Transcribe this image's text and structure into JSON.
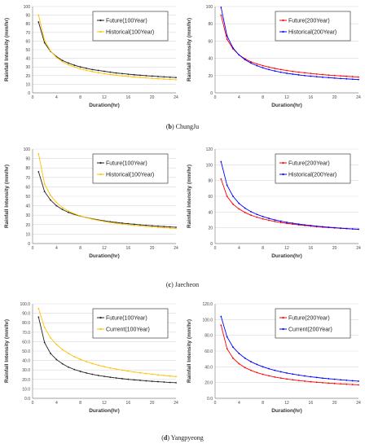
{
  "captions": [
    {
      "letter": "b",
      "paren_open": "(",
      "paren_close": ")",
      "name": "ChungJu"
    },
    {
      "letter": "c",
      "paren_open": "(",
      "paren_close": ")",
      "name": "Jaecheon"
    },
    {
      "letter": "d",
      "paren_open": "(",
      "paren_close": ")",
      "name": "Yangpyeong"
    }
  ],
  "chart_data": [
    {
      "type": "line",
      "xlabel": "Duration(hr)",
      "ylabel": "Rainfall Intensity (mm/hr)",
      "xlim": [
        0,
        24
      ],
      "ylim": [
        0,
        100
      ],
      "x_ticks": [
        0,
        4,
        8,
        12,
        16,
        20,
        24
      ],
      "y_ticks": [
        "0",
        "10",
        "20",
        "30",
        "40",
        "50",
        "60",
        "70",
        "80",
        "90",
        "100"
      ],
      "legend": "top-right",
      "x": [
        1,
        2,
        3,
        4,
        5,
        6,
        7,
        8,
        9,
        10,
        11,
        12,
        13,
        14,
        15,
        16,
        17,
        18,
        19,
        20,
        21,
        22,
        23,
        24
      ],
      "series": [
        {
          "name": "Future(100Year)",
          "color": "#222222",
          "values": [
            82,
            58,
            48,
            42,
            37.5,
            34.5,
            32,
            30,
            28.5,
            27,
            26,
            25,
            24,
            23,
            22.3,
            21.6,
            21,
            20.4,
            19.9,
            19.4,
            18.9,
            18.5,
            18.1,
            17.7
          ]
        },
        {
          "name": "Historical(100Year)",
          "color": "#ffc000",
          "values": [
            90,
            61,
            48.5,
            41,
            36,
            32.5,
            30,
            27.8,
            26,
            24.6,
            23.3,
            22.2,
            21.3,
            20.4,
            19.7,
            19,
            18.4,
            17.8,
            17.3,
            16.8,
            16.4,
            16,
            15.6,
            15.2
          ]
        }
      ]
    },
    {
      "type": "line",
      "xlabel": "Duration(hr)",
      "ylabel": "Rainfall Intensity (mm/hr)",
      "xlim": [
        0,
        24
      ],
      "ylim": [
        0,
        100
      ],
      "x_ticks": [
        0,
        4,
        8,
        12,
        16,
        20,
        24
      ],
      "y_ticks": [
        "0",
        "20",
        "40",
        "60",
        "80",
        "100"
      ],
      "legend": "top-right",
      "x": [
        1,
        2,
        3,
        4,
        5,
        6,
        7,
        8,
        9,
        10,
        11,
        12,
        13,
        14,
        15,
        16,
        17,
        18,
        19,
        20,
        21,
        22,
        23,
        24
      ],
      "series": [
        {
          "name": "Future(200Year)",
          "color": "#ff0000",
          "values": [
            90,
            62,
            51,
            44,
            39.5,
            36,
            33.5,
            31.5,
            29.8,
            28.3,
            27,
            25.9,
            24.9,
            24,
            23.2,
            22.5,
            21.8,
            21.2,
            20.6,
            20.1,
            19.6,
            19.1,
            18.7,
            18.3
          ]
        },
        {
          "name": "Historical(200Year)",
          "color": "#0000ff",
          "values": [
            99,
            66,
            52,
            44,
            38.5,
            34.5,
            31.5,
            29,
            27,
            25.3,
            23.9,
            22.7,
            21.7,
            20.8,
            20,
            19.3,
            18.7,
            18.1,
            17.6,
            17.1,
            16.6,
            16.2,
            15.8,
            15.4
          ]
        }
      ]
    },
    {
      "type": "line",
      "xlabel": "Duration(hr)",
      "ylabel": "Rainfall Intensity (mm/hr)",
      "xlim": [
        0,
        24
      ],
      "ylim": [
        0,
        100
      ],
      "x_ticks": [
        0,
        4,
        8,
        12,
        16,
        20,
        24
      ],
      "y_ticks": [
        "0",
        "10",
        "20",
        "30",
        "40",
        "50",
        "60",
        "70",
        "80",
        "90",
        "100"
      ],
      "legend": "top-right",
      "x": [
        1,
        2,
        3,
        4,
        5,
        6,
        7,
        8,
        9,
        10,
        11,
        12,
        13,
        14,
        15,
        16,
        17,
        18,
        19,
        20,
        21,
        22,
        23,
        24
      ],
      "series": [
        {
          "name": "Future(100Year)",
          "color": "#222222",
          "values": [
            76,
            55,
            46,
            40,
            36,
            33,
            30.8,
            29,
            27.5,
            26.2,
            25,
            24,
            23.1,
            22.3,
            21.6,
            21,
            20.4,
            19.8,
            19.3,
            18.8,
            18.4,
            18,
            17.6,
            17.2
          ]
        },
        {
          "name": "Historical(100Year)",
          "color": "#ffc000",
          "values": [
            95,
            63,
            51,
            43.5,
            38,
            34.3,
            31.5,
            29.3,
            27.4,
            25.8,
            24.5,
            23.3,
            22.3,
            21.4,
            20.6,
            19.9,
            19.2,
            18.6,
            18.1,
            17.6,
            17.1,
            16.7,
            16.3,
            15.9
          ]
        }
      ]
    },
    {
      "type": "line",
      "xlabel": "Duration(hr)",
      "ylabel": "Rainfall Intensity (mm/hr)",
      "xlim": [
        0,
        24
      ],
      "ylim": [
        0,
        120
      ],
      "x_ticks": [
        0,
        4,
        8,
        12,
        16,
        20,
        24
      ],
      "y_ticks": [
        "0",
        "20",
        "40",
        "60",
        "80",
        "100",
        "120"
      ],
      "legend": "top-right",
      "x": [
        1,
        2,
        3,
        4,
        5,
        6,
        7,
        8,
        9,
        10,
        11,
        12,
        13,
        14,
        15,
        16,
        17,
        18,
        19,
        20,
        21,
        22,
        23,
        24
      ],
      "series": [
        {
          "name": "Future(200Year)",
          "color": "#ff0000",
          "values": [
            82,
            60,
            50,
            44,
            39.5,
            36,
            33.5,
            31.3,
            29.5,
            28,
            26.7,
            25.6,
            24.6,
            23.7,
            22.9,
            22.2,
            21.5,
            20.9,
            20.3,
            19.8,
            19.3,
            18.9,
            18.5,
            18.1
          ]
        },
        {
          "name": "Historical(200Year)",
          "color": "#0000ff",
          "values": [
            104,
            74,
            60,
            51,
            45,
            40.5,
            37,
            34.3,
            32,
            30,
            28.4,
            27,
            25.8,
            24.7,
            23.7,
            22.9,
            22.1,
            21.4,
            20.8,
            20.2,
            19.6,
            19.1,
            18.6,
            18.2
          ]
        }
      ]
    },
    {
      "type": "line",
      "xlabel": "Duration(hr)",
      "ylabel": "Rainfall Intensity (mm/hr)",
      "xlim": [
        0,
        24
      ],
      "ylim": [
        0,
        100
      ],
      "x_ticks": [
        0,
        4,
        8,
        12,
        16,
        20,
        24
      ],
      "y_ticks": [
        "0.0",
        "10.0",
        "20.0",
        "30.0",
        "40.0",
        "50.0",
        "60.0",
        "70.0",
        "80.0",
        "90.0",
        "100.0"
      ],
      "legend": "top-right",
      "x": [
        1,
        2,
        3,
        4,
        5,
        6,
        7,
        8,
        9,
        10,
        11,
        12,
        13,
        14,
        15,
        16,
        17,
        18,
        19,
        20,
        21,
        22,
        23,
        24
      ],
      "series": [
        {
          "name": "Future(100Year)",
          "color": "#222222",
          "values": [
            86,
            59,
            47.5,
            41,
            36.5,
            33,
            30.5,
            28.5,
            26.8,
            25.4,
            24.2,
            23.2,
            22.3,
            21.5,
            20.8,
            20.1,
            19.5,
            19,
            18.5,
            18,
            17.6,
            17.2,
            16.8,
            16.5
          ]
        },
        {
          "name": "Current(100Year)",
          "color": "#ffc000",
          "values": [
            95,
            75,
            64,
            57,
            51.5,
            47.5,
            44,
            41.2,
            38.8,
            36.8,
            35,
            33.5,
            32.1,
            30.9,
            29.8,
            28.8,
            27.9,
            27,
            26.2,
            25.5,
            24.8,
            24.2,
            23.6,
            23
          ]
        }
      ]
    },
    {
      "type": "line",
      "xlabel": "Duration(hr)",
      "ylabel": "Rainfall Intensity (mm/hr)",
      "xlim": [
        0,
        24
      ],
      "ylim": [
        0,
        120
      ],
      "x_ticks": [
        0,
        4,
        8,
        12,
        16,
        20,
        24
      ],
      "y_ticks": [
        "0.0",
        "20.0",
        "40.0",
        "60.0",
        "80.0",
        "100.0",
        "120.0"
      ],
      "legend": "top-right",
      "x": [
        1,
        2,
        3,
        4,
        5,
        6,
        7,
        8,
        9,
        10,
        11,
        12,
        13,
        14,
        15,
        16,
        17,
        18,
        19,
        20,
        21,
        22,
        23,
        24
      ],
      "series": [
        {
          "name": "Future(200Year)",
          "color": "#ff0000",
          "values": [
            93,
            63,
            51,
            44,
            39,
            35.5,
            32.7,
            30.4,
            28.6,
            27,
            25.7,
            24.5,
            23.5,
            22.6,
            21.8,
            21.1,
            20.4,
            19.8,
            19.3,
            18.8,
            18.3,
            17.9,
            17.5,
            17.1
          ]
        },
        {
          "name": "Current(200Year)",
          "color": "#0000ff",
          "values": [
            104,
            78,
            65,
            57,
            51,
            46.5,
            43,
            40,
            37.6,
            35.5,
            33.7,
            32.1,
            30.7,
            29.5,
            28.4,
            27.4,
            26.5,
            25.6,
            24.9,
            24.2,
            23.5,
            22.9,
            22.3,
            21.8
          ]
        }
      ]
    }
  ]
}
